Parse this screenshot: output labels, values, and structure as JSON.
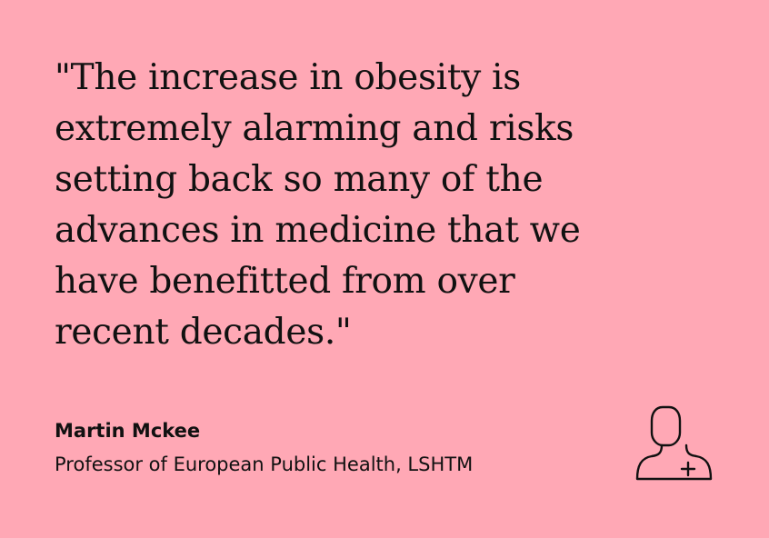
{
  "quote": {
    "lines": [
      "\"The increase in obesity is",
      "extremely alarming and risks",
      "setting back so many of the",
      "advances in medicine that we",
      "have benefitted from over",
      "recent decades.\""
    ]
  },
  "author": {
    "name": "Martin Mckee",
    "title": "Professor of European Public Health, LSHTM"
  },
  "icon": "person-plus-icon",
  "colors": {
    "background": "#FFA8B5",
    "text": "#111111"
  }
}
